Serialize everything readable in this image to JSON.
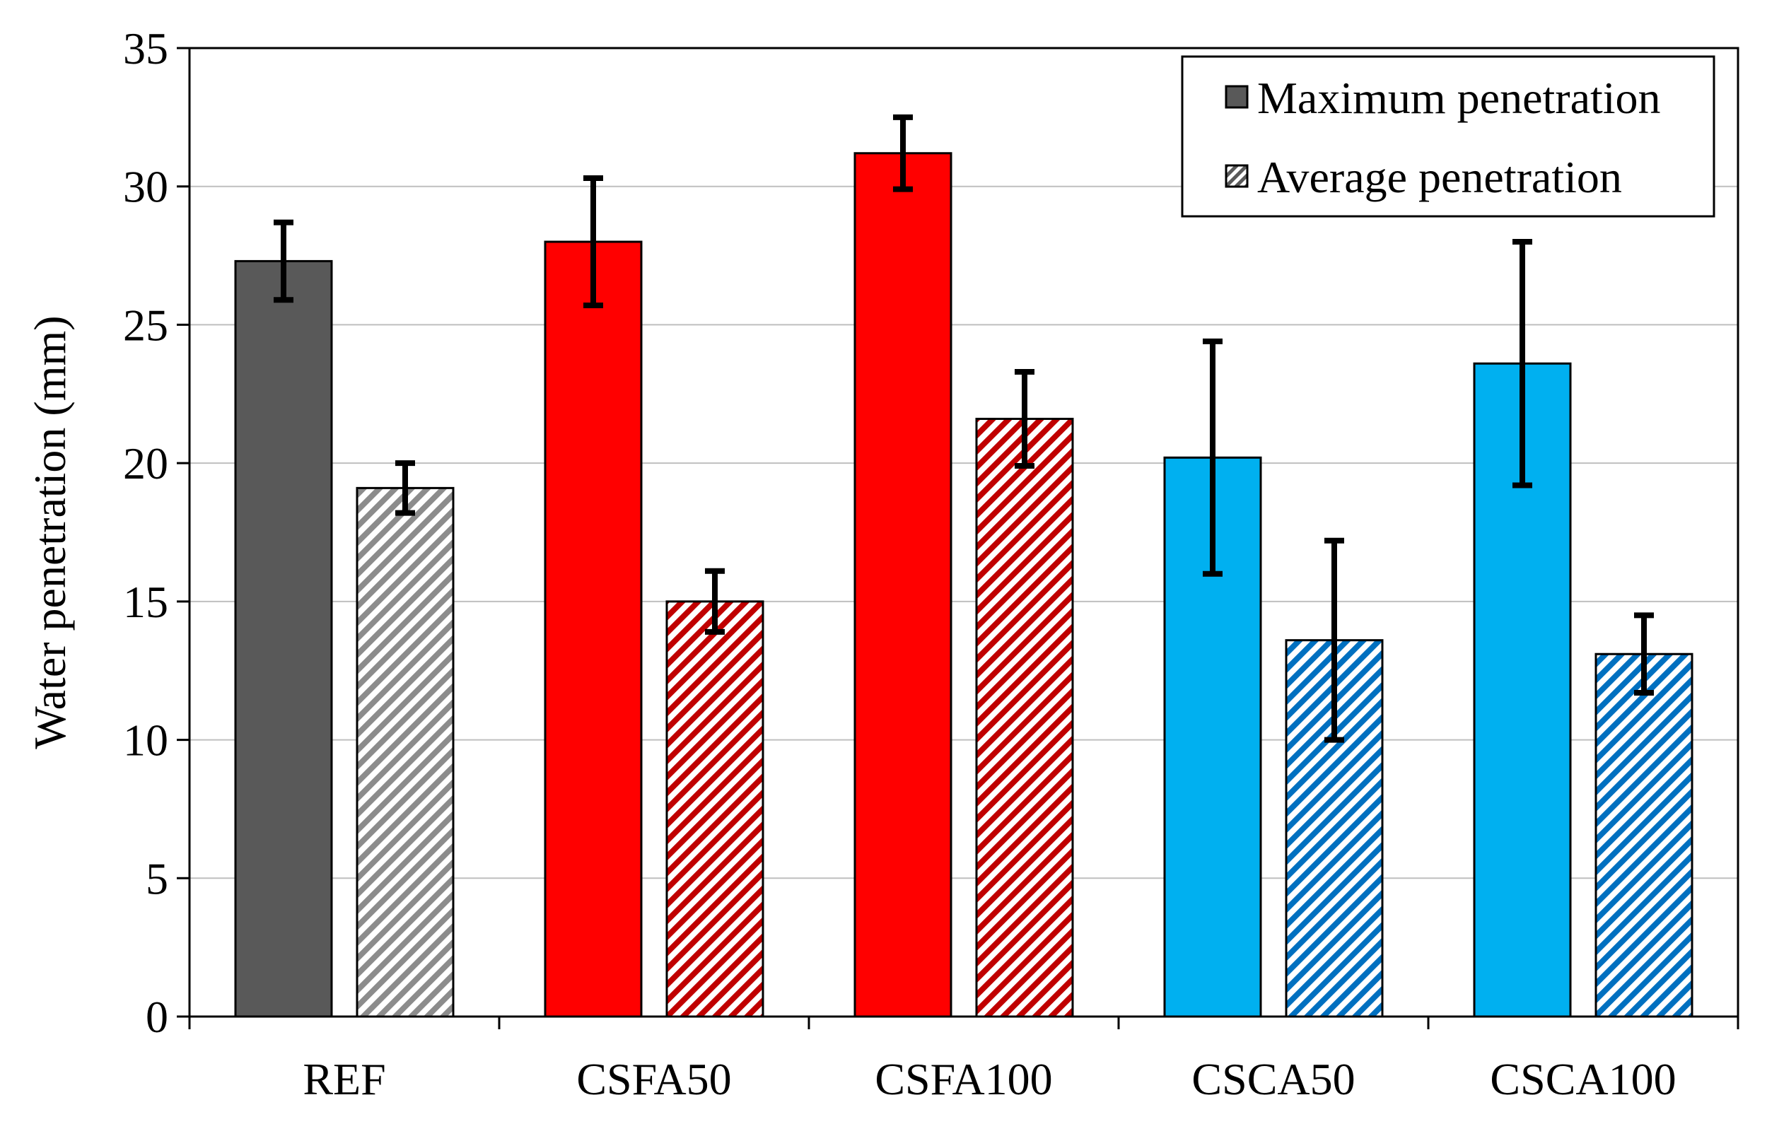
{
  "chart_data": {
    "type": "bar",
    "title": "",
    "xlabel": "",
    "ylabel": "Water penetration (mm)",
    "ylim": [
      0,
      35
    ],
    "yticks": [
      0,
      5,
      10,
      15,
      20,
      25,
      30,
      35
    ],
    "grid": true,
    "legend_position": "top-right",
    "categories": [
      "REF",
      "CSFA50",
      "CSFA100",
      "CSCA50",
      "CSCA100"
    ],
    "category_colors": [
      "#595959",
      "#ff0000",
      "#00b0f0"
    ],
    "hatch_colors": [
      "#8c8c8c",
      "#c00000",
      "#0070c0"
    ],
    "series": [
      {
        "name": "Maximum penetration",
        "style": "solid",
        "legend_color": "#595959",
        "values": [
          27.3,
          28.0,
          31.2,
          20.2,
          23.6
        ],
        "errors": [
          1.4,
          2.3,
          1.3,
          4.2,
          4.4
        ]
      },
      {
        "name": "Average penetration",
        "style": "hatched",
        "legend_color": "#595959",
        "values": [
          19.1,
          15.0,
          21.6,
          13.6,
          13.1
        ],
        "errors": [
          0.9,
          1.1,
          1.7,
          3.6,
          1.4
        ]
      }
    ]
  }
}
